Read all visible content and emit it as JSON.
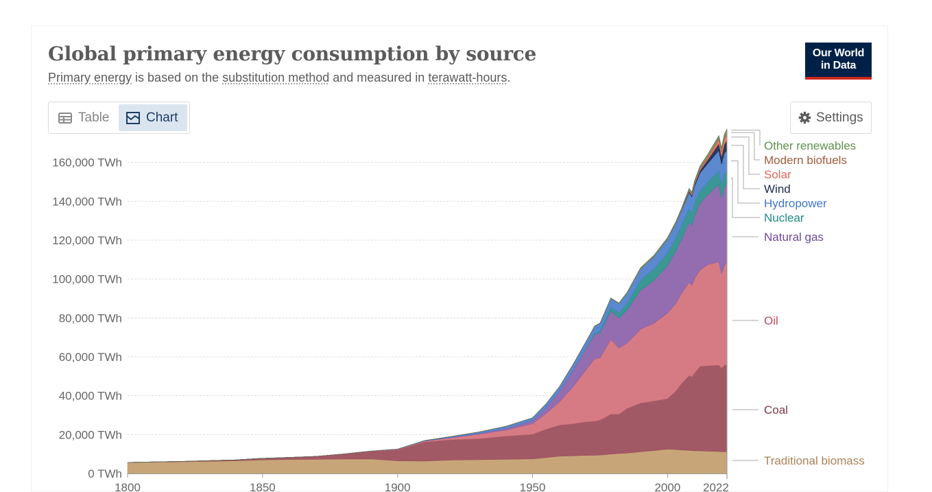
{
  "header": {
    "title": "Global primary energy consumption by source",
    "subtitle_parts": [
      "Primary energy",
      " is based on the ",
      "substitution method",
      " and measured in ",
      "terawatt-hours",
      "."
    ],
    "logo_line1": "Our World",
    "logo_line2": "in Data"
  },
  "tabs": [
    {
      "label": "Table",
      "icon": "table-icon",
      "active": false
    },
    {
      "label": "Chart",
      "icon": "chart-icon",
      "active": true
    }
  ],
  "settings_label": "Settings",
  "chart_data": {
    "type": "area",
    "stacked": true,
    "title": "Global primary energy consumption by source",
    "ylabel": "",
    "ylim": [
      0,
      180000
    ],
    "xlim": [
      1800,
      2022
    ],
    "y_ticks": [
      0,
      20000,
      40000,
      60000,
      80000,
      100000,
      120000,
      140000,
      160000
    ],
    "y_tick_labels": [
      "0 TWh",
      "20,000 TWh",
      "40,000 TWh",
      "60,000 TWh",
      "80,000 TWh",
      "100,000 TWh",
      "120,000 TWh",
      "140,000 TWh",
      "160,000 TWh"
    ],
    "x_ticks": [
      1800,
      1850,
      1900,
      1950,
      2000,
      2022
    ],
    "x_tick_labels": [
      "1800",
      "1850",
      "1900",
      "1950",
      "2000",
      "2022"
    ],
    "grid": true,
    "legend_position": "right",
    "x": [
      1800,
      1820,
      1840,
      1850,
      1860,
      1870,
      1880,
      1890,
      1900,
      1910,
      1920,
      1930,
      1940,
      1950,
      1955,
      1960,
      1965,
      1970,
      1973,
      1975,
      1979,
      1982,
      1985,
      1990,
      1995,
      2000,
      2003,
      2005,
      2008,
      2009,
      2010,
      2012,
      2015,
      2019,
      2020,
      2021,
      2022
    ],
    "series": [
      {
        "name": "Traditional biomass",
        "color": "#c29d6e",
        "values": [
          5600,
          6000,
          6500,
          7000,
          7200,
          7300,
          7400,
          7500,
          6500,
          6400,
          6900,
          7100,
          7300,
          7500,
          8200,
          8900,
          9100,
          9300,
          9400,
          9500,
          10000,
          10300,
          10500,
          11200,
          11800,
          12500,
          12300,
          12100,
          11900,
          11800,
          11700,
          11600,
          11500,
          11300,
          11200,
          11200,
          11200
        ]
      },
      {
        "name": "Coal",
        "color": "#9a4b59",
        "values": [
          100,
          200,
          500,
          800,
          1100,
          1500,
          2600,
          3900,
          5700,
          9800,
          10500,
          10800,
          11900,
          12700,
          14600,
          16000,
          16500,
          17300,
          17500,
          18000,
          20500,
          20200,
          23000,
          25000,
          25500,
          26000,
          30000,
          34000,
          38500,
          38000,
          40000,
          43500,
          44000,
          44500,
          43000,
          44500,
          44800
        ]
      },
      {
        "name": "Oil",
        "color": "#d3707a",
        "values": [
          0,
          0,
          0,
          0,
          0,
          10,
          30,
          80,
          200,
          400,
          1000,
          2200,
          3100,
          5400,
          8000,
          12000,
          19000,
          27000,
          32000,
          32000,
          38500,
          34000,
          33500,
          38000,
          40000,
          44000,
          45000,
          46000,
          48000,
          47000,
          48500,
          49500,
          52000,
          53000,
          48500,
          51000,
          52800
        ]
      },
      {
        "name": "Natural gas",
        "color": "#8a61a8",
        "values": [
          0,
          0,
          0,
          0,
          0,
          0,
          0,
          10,
          60,
          140,
          220,
          480,
          800,
          1600,
          3100,
          5500,
          8500,
          11000,
          12600,
          12800,
          14500,
          15500,
          17000,
          20000,
          22000,
          24500,
          27000,
          28000,
          31000,
          30500,
          32000,
          34500,
          36000,
          40000,
          39000,
          40500,
          40000
        ]
      },
      {
        "name": "Nuclear",
        "color": "#2a8e8a",
        "values": [
          0,
          0,
          0,
          0,
          0,
          0,
          0,
          0,
          0,
          0,
          0,
          0,
          0,
          0,
          0,
          0,
          50,
          200,
          500,
          1000,
          2000,
          2500,
          3500,
          5200,
          5900,
          6500,
          6700,
          6800,
          6800,
          6600,
          6800,
          6200,
          6400,
          6900,
          6700,
          6800,
          6600
        ]
      },
      {
        "name": "Hydropower",
        "color": "#4c7fcb",
        "values": [
          0,
          0,
          0,
          0,
          0,
          0,
          0,
          10,
          60,
          200,
          400,
          700,
          1100,
          1400,
          1900,
          2300,
          2900,
          3500,
          3800,
          4000,
          4600,
          4900,
          5200,
          5800,
          6400,
          7000,
          7300,
          7700,
          8400,
          8400,
          8800,
          9200,
          9700,
          10500,
          10700,
          10700,
          10700
        ]
      },
      {
        "name": "Wind",
        "color": "#19284e",
        "values": [
          0,
          0,
          0,
          0,
          0,
          0,
          0,
          0,
          0,
          0,
          0,
          0,
          0,
          0,
          0,
          0,
          0,
          0,
          0,
          0,
          0,
          0,
          0,
          10,
          20,
          80,
          150,
          250,
          550,
          700,
          900,
          1300,
          2000,
          3500,
          4000,
          4600,
          5300
        ]
      },
      {
        "name": "Solar",
        "color": "#e86f5c",
        "values": [
          0,
          0,
          0,
          0,
          0,
          0,
          0,
          0,
          0,
          0,
          0,
          0,
          0,
          0,
          0,
          0,
          0,
          0,
          0,
          0,
          0,
          0,
          0,
          0,
          0,
          5,
          10,
          20,
          60,
          100,
          170,
          400,
          750,
          1800,
          2100,
          2600,
          3300
        ]
      },
      {
        "name": "Modern biofuels",
        "color": "#b1694b",
        "values": [
          0,
          0,
          0,
          0,
          0,
          0,
          0,
          0,
          0,
          0,
          0,
          0,
          0,
          0,
          0,
          0,
          0,
          0,
          0,
          0,
          30,
          80,
          130,
          200,
          200,
          200,
          250,
          350,
          700,
          800,
          900,
          950,
          1050,
          1150,
          1100,
          1150,
          1200
        ]
      },
      {
        "name": "Other renewables",
        "color": "#6a9b5c",
        "values": [
          0,
          0,
          0,
          0,
          0,
          0,
          0,
          0,
          0,
          0,
          0,
          0,
          0,
          0,
          0,
          0,
          30,
          50,
          70,
          90,
          150,
          200,
          280,
          380,
          450,
          520,
          560,
          600,
          700,
          740,
          800,
          880,
          960,
          1100,
          1150,
          1200,
          1300
        ]
      }
    ],
    "label_order_top_to_bottom": [
      "Other renewables",
      "Modern biofuels",
      "Solar",
      "Wind",
      "Hydropower",
      "Nuclear",
      "Natural gas",
      "Oil",
      "Coal",
      "Traditional biomass"
    ]
  }
}
